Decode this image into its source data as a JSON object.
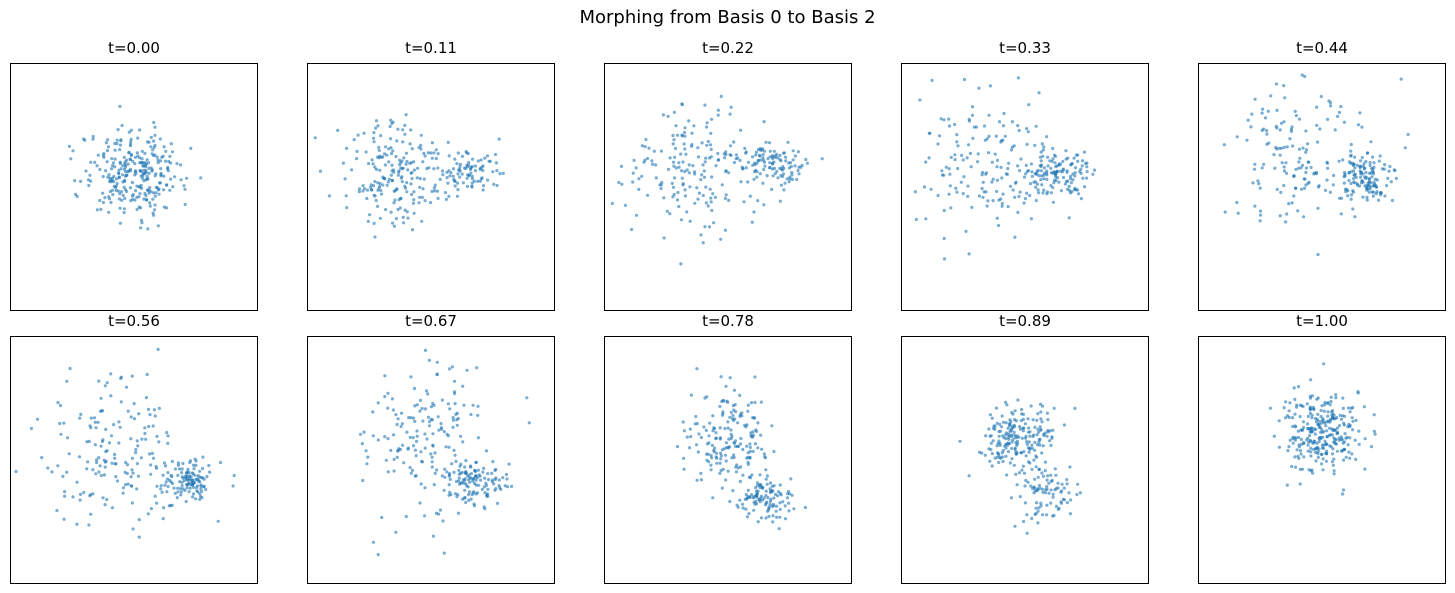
{
  "figure": {
    "title": "Morphing from Basis 0 to Basis 2",
    "point_color": "#1f77b4"
  },
  "chart_data": [
    {
      "type": "scatter",
      "title": "t=0.00",
      "clusters": [
        {
          "cx": 0.0,
          "cy": 0.2,
          "sx": 0.35,
          "sy": 0.3,
          "n": 290
        }
      ],
      "xlim": [
        -1.7,
        1.7
      ],
      "ylim": [
        -1.7,
        1.7
      ],
      "grid": false
    },
    {
      "type": "scatter",
      "title": "t=0.11",
      "clusters": [
        {
          "cx": -0.4,
          "cy": 0.2,
          "sx": 0.42,
          "sy": 0.34,
          "n": 210
        },
        {
          "cx": 0.55,
          "cy": 0.2,
          "sx": 0.22,
          "sy": 0.17,
          "n": 80
        }
      ],
      "xlim": [
        -1.7,
        1.7
      ],
      "ylim": [
        -1.7,
        1.7
      ],
      "grid": false
    },
    {
      "type": "scatter",
      "title": "t=0.22",
      "clusters": [
        {
          "cx": -0.45,
          "cy": 0.2,
          "sx": 0.45,
          "sy": 0.45,
          "n": 190
        },
        {
          "cx": 0.65,
          "cy": 0.35,
          "sx": 0.22,
          "sy": 0.16,
          "n": 100
        }
      ],
      "xlim": [
        -1.7,
        1.7
      ],
      "ylim": [
        -1.7,
        1.7
      ],
      "grid": false
    },
    {
      "type": "scatter",
      "title": "t=0.33",
      "clusters": [
        {
          "cx": -0.45,
          "cy": 0.35,
          "sx": 0.5,
          "sy": 0.5,
          "n": 170
        },
        {
          "cx": 0.45,
          "cy": 0.2,
          "sx": 0.22,
          "sy": 0.16,
          "n": 120
        }
      ],
      "xlim": [
        -1.7,
        1.7
      ],
      "ylim": [
        -1.7,
        1.7
      ],
      "grid": false
    },
    {
      "type": "scatter",
      "title": "t=0.44",
      "clusters": [
        {
          "cx": -0.3,
          "cy": 0.4,
          "sx": 0.5,
          "sy": 0.55,
          "n": 160
        },
        {
          "cx": 0.6,
          "cy": 0.15,
          "sx": 0.2,
          "sy": 0.17,
          "n": 130
        }
      ],
      "xlim": [
        -1.7,
        1.7
      ],
      "ylim": [
        -1.7,
        1.7
      ],
      "grid": false
    },
    {
      "type": "scatter",
      "title": "t=0.56",
      "clusters": [
        {
          "cx": -0.3,
          "cy": 0.1,
          "sx": 0.45,
          "sy": 0.55,
          "n": 160
        },
        {
          "cx": 0.7,
          "cy": -0.3,
          "sx": 0.2,
          "sy": 0.15,
          "n": 130
        }
      ],
      "xlim": [
        -1.7,
        1.7
      ],
      "ylim": [
        -1.7,
        1.7
      ],
      "grid": false
    },
    {
      "type": "scatter",
      "title": "t=0.67",
      "clusters": [
        {
          "cx": -0.1,
          "cy": 0.3,
          "sx": 0.4,
          "sy": 0.55,
          "n": 170
        },
        {
          "cx": 0.6,
          "cy": -0.3,
          "sx": 0.2,
          "sy": 0.15,
          "n": 120
        }
      ],
      "xlim": [
        -1.7,
        1.7
      ],
      "ylim": [
        -1.7,
        1.7
      ],
      "grid": false
    },
    {
      "type": "scatter",
      "title": "t=0.78",
      "clusters": [
        {
          "cx": 0.0,
          "cy": 0.35,
          "sx": 0.3,
          "sy": 0.35,
          "n": 180
        },
        {
          "cx": 0.5,
          "cy": -0.55,
          "sx": 0.22,
          "sy": 0.15,
          "n": 110
        }
      ],
      "xlim": [
        -1.7,
        1.7
      ],
      "ylim": [
        -1.7,
        1.7
      ],
      "grid": false
    },
    {
      "type": "scatter",
      "title": "t=0.89",
      "clusters": [
        {
          "cx": -0.1,
          "cy": 0.3,
          "sx": 0.25,
          "sy": 0.25,
          "n": 200
        },
        {
          "cx": 0.3,
          "cy": -0.45,
          "sx": 0.22,
          "sy": 0.2,
          "n": 90
        }
      ],
      "xlim": [
        -1.7,
        1.7
      ],
      "ylim": [
        -1.7,
        1.7
      ],
      "grid": false
    },
    {
      "type": "scatter",
      "title": "t=1.00",
      "clusters": [
        {
          "cx": 0.0,
          "cy": 0.35,
          "sx": 0.27,
          "sy": 0.27,
          "n": 290
        }
      ],
      "xlim": [
        -1.7,
        1.7
      ],
      "ylim": [
        -1.7,
        1.7
      ],
      "grid": false
    }
  ]
}
